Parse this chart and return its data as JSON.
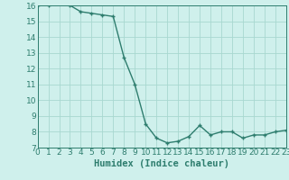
{
  "x": [
    0,
    1,
    2,
    3,
    4,
    5,
    6,
    7,
    8,
    9,
    10,
    11,
    12,
    13,
    14,
    15,
    16,
    17,
    18,
    19,
    20,
    21,
    22,
    23
  ],
  "y": [
    16.0,
    16.0,
    16.2,
    16.0,
    15.6,
    15.5,
    15.4,
    15.3,
    12.7,
    11.0,
    8.5,
    7.6,
    7.3,
    7.4,
    7.7,
    8.4,
    7.8,
    8.0,
    8.0,
    7.6,
    7.8,
    7.8,
    8.0,
    8.1
  ],
  "line_color": "#2e7d6e",
  "marker": "+",
  "marker_size": 3,
  "bg_color": "#cff0ec",
  "grid_color": "#a8d8d0",
  "xlabel": "Humidex (Indice chaleur)",
  "xlim": [
    0,
    23
  ],
  "ylim": [
    7,
    16
  ],
  "xticks": [
    0,
    1,
    2,
    3,
    4,
    5,
    6,
    7,
    8,
    9,
    10,
    11,
    12,
    13,
    14,
    15,
    16,
    17,
    18,
    19,
    20,
    21,
    22,
    23
  ],
  "yticks": [
    7,
    8,
    9,
    10,
    11,
    12,
    13,
    14,
    15,
    16
  ],
  "xlabel_fontsize": 7.5,
  "tick_fontsize": 6.5,
  "line_width": 1.0
}
